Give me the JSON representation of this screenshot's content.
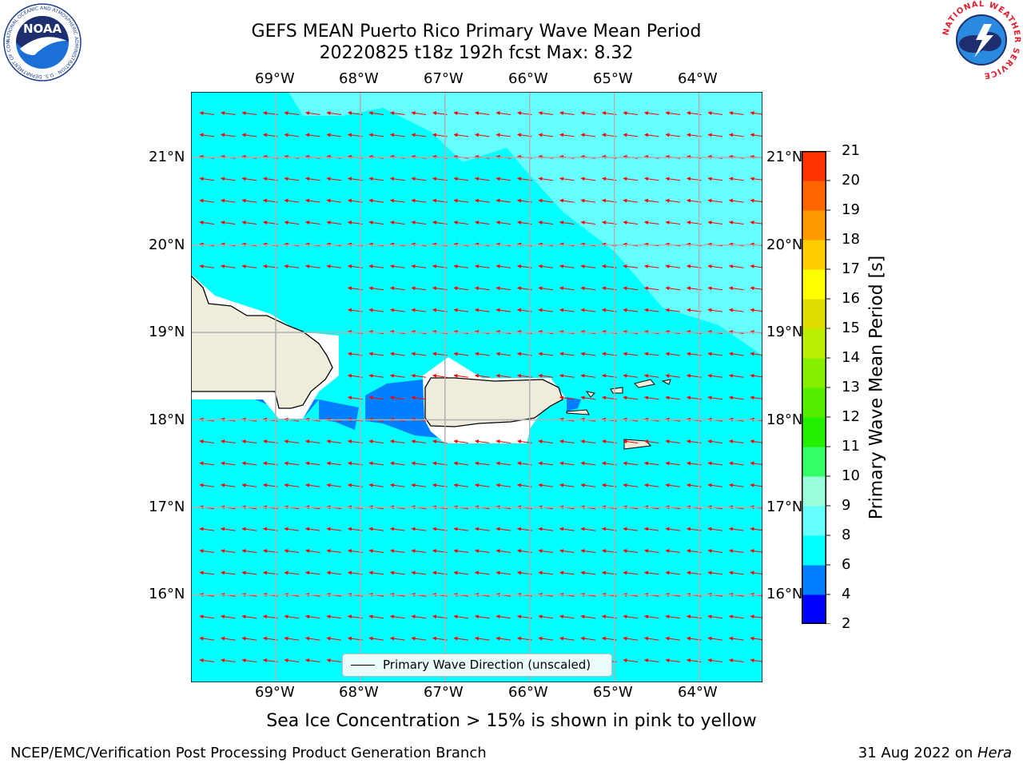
{
  "header": {
    "title_line1": "GEFS MEAN Puerto Rico Primary Wave Mean Period",
    "title_line2": "20220825 t18z 192h fcst   Max: 8.32"
  },
  "logos": {
    "left": {
      "icon": "noaa-logo",
      "text": "NOAA",
      "ring_text": "NATIONAL OCEANIC AND ATMOSPHERIC ADMINISTRATION · U.S. DEPARTMENT OF COMMERCE"
    },
    "right": {
      "icon": "nws-logo",
      "ring_text": "NATIONAL WEATHER SERVICE"
    }
  },
  "map": {
    "lon_labels": [
      "69°W",
      "68°W",
      "67°W",
      "66°W",
      "65°W",
      "64°W"
    ],
    "lat_labels": [
      "21°N",
      "20°N",
      "19°N",
      "18°N",
      "17°N",
      "16°N"
    ],
    "lon_range": [
      -70.0,
      -63.25
    ],
    "lat_range": [
      15.0,
      21.75
    ],
    "grid": true,
    "ocean_color": "#00ffff",
    "high_period_color": "#66ffff",
    "low_period_color": "#0080ff",
    "land_color": "#efecdc",
    "arrow_color": "#ff0000",
    "arrow_direction": "westward"
  },
  "legend": {
    "label": "Primary Wave Direction (unscaled)"
  },
  "colorbar": {
    "label": "Primary Wave Mean Period [s]",
    "ticks": [
      "2",
      "4",
      "6",
      "8",
      "9",
      "10",
      "11",
      "12",
      "13",
      "14",
      "15",
      "16",
      "17",
      "18",
      "19",
      "20",
      "21"
    ],
    "colors": [
      "#0000ff",
      "#0080ff",
      "#00ffff",
      "#66ffff",
      "#99ffdd",
      "#33ff66",
      "#22ee00",
      "#55ee00",
      "#88ee00",
      "#bbee00",
      "#dddd00",
      "#ffff00",
      "#ffcc00",
      "#ff9900",
      "#ff6600",
      "#ff3300",
      "#ff0000"
    ]
  },
  "note": "Sea Ice Concentration > 15% is shown in pink to yellow",
  "footer": {
    "left": "NCEP/EMC/Verification Post Processing Product Generation Branch",
    "right_prefix": "31 Aug 2022 on ",
    "right_host": "Hera"
  }
}
